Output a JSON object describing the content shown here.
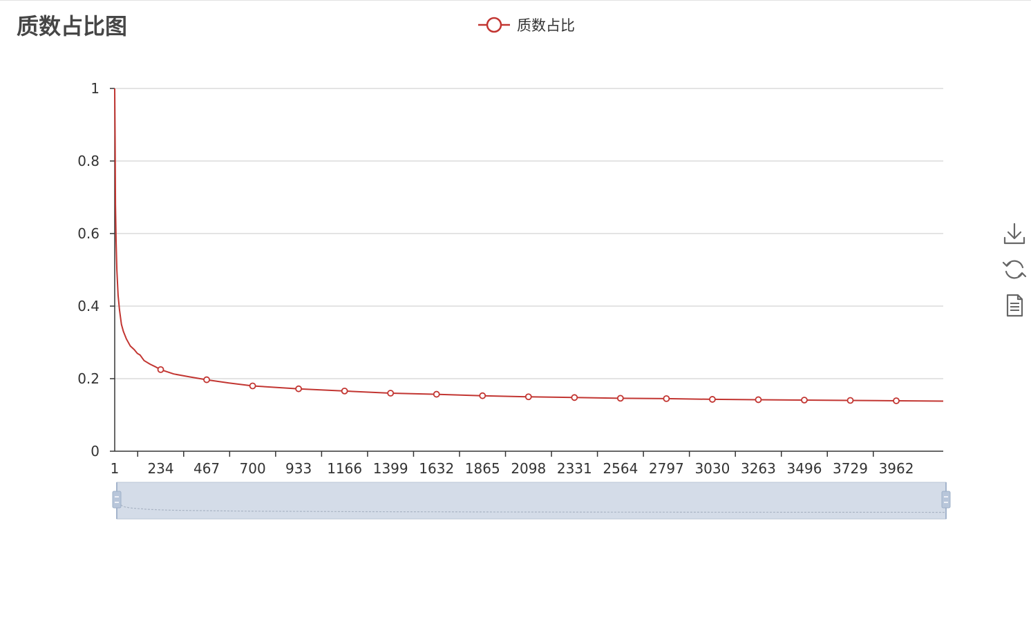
{
  "chart_data": {
    "type": "line",
    "title": "质数占比图",
    "legend": [
      "质数占比"
    ],
    "legend_position": "top-center",
    "series_color": "#c23531",
    "xlabel": "",
    "ylabel": "",
    "x_range": [
      1,
      4200
    ],
    "x_ticks": [
      "1",
      "234",
      "467",
      "700",
      "933",
      "1166",
      "1399",
      "1632",
      "1865",
      "2098",
      "2331",
      "2564",
      "2797",
      "3030",
      "3263",
      "3496",
      "3729",
      "3962"
    ],
    "ylim": [
      0,
      1
    ],
    "y_ticks": [
      "0",
      "0.2",
      "0.4",
      "0.6",
      "0.8",
      "1"
    ],
    "grid": "horizontal",
    "series": [
      {
        "name": "质数占比",
        "points": [
          [
            1,
            1.0
          ],
          [
            3,
            0.85
          ],
          [
            5,
            0.68
          ],
          [
            8,
            0.58
          ],
          [
            12,
            0.5
          ],
          [
            18,
            0.43
          ],
          [
            25,
            0.39
          ],
          [
            35,
            0.35
          ],
          [
            45,
            0.33
          ],
          [
            60,
            0.31
          ],
          [
            80,
            0.29
          ],
          [
            100,
            0.28
          ],
          [
            115,
            0.27
          ],
          [
            130,
            0.265
          ],
          [
            150,
            0.25
          ],
          [
            180,
            0.24
          ],
          [
            210,
            0.232
          ],
          [
            234,
            0.225
          ],
          [
            300,
            0.213
          ],
          [
            380,
            0.205
          ],
          [
            467,
            0.197
          ],
          [
            580,
            0.188
          ],
          [
            700,
            0.18
          ],
          [
            933,
            0.172
          ],
          [
            1166,
            0.166
          ],
          [
            1399,
            0.16
          ],
          [
            1632,
            0.157
          ],
          [
            1865,
            0.153
          ],
          [
            2098,
            0.15
          ],
          [
            2331,
            0.148
          ],
          [
            2564,
            0.146
          ],
          [
            2797,
            0.145
          ],
          [
            3030,
            0.143
          ],
          [
            3263,
            0.142
          ],
          [
            3496,
            0.141
          ],
          [
            3729,
            0.14
          ],
          [
            3962,
            0.139
          ],
          [
            4200,
            0.138
          ]
        ]
      }
    ],
    "markers_x": [
      234,
      467,
      700,
      933,
      1166,
      1399,
      1632,
      1865,
      2098,
      2331,
      2564,
      2797,
      3030,
      3263,
      3496,
      3729,
      3962
    ],
    "data_zoom": {
      "start": 0,
      "end": 100
    }
  },
  "toolbox": {
    "items": [
      {
        "name": "save-as-image-icon"
      },
      {
        "name": "restore-icon"
      },
      {
        "name": "data-view-icon"
      }
    ]
  }
}
